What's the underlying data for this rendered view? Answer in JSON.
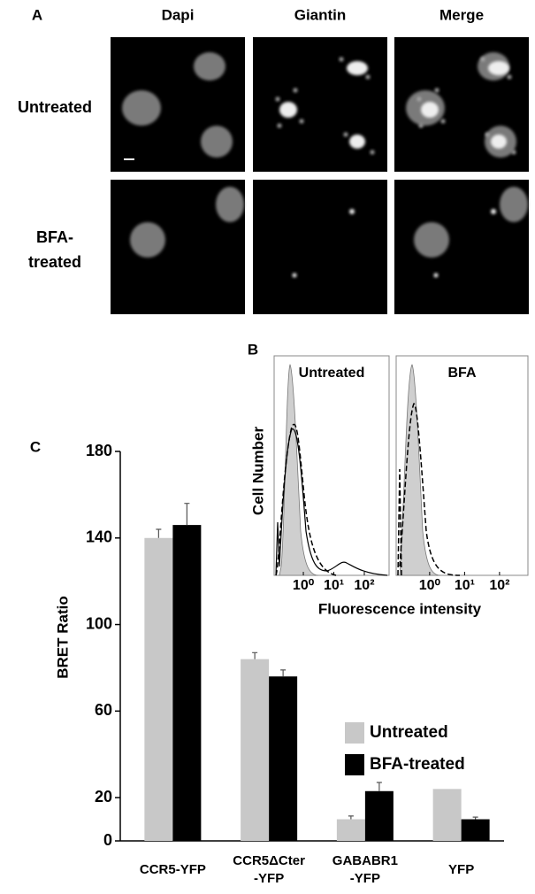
{
  "panel_a": {
    "label": "A",
    "columns": [
      "Dapi",
      "Giantin",
      "Merge"
    ],
    "rows": [
      "Untreated",
      "BFA-\ntreated"
    ]
  },
  "panel_b": {
    "label": "B",
    "y_label": "Cell Number",
    "x_label": "Fluorescence intensity",
    "panels": [
      "Untreated",
      "BFA"
    ],
    "xscale": "log",
    "xlim": [
      0.11,
      650
    ],
    "xticks": [
      {
        "value": 1,
        "label": "10⁰"
      },
      {
        "value": 10,
        "label": "10¹"
      },
      {
        "value": 100,
        "label": "10²"
      }
    ]
  },
  "chart_data": {
    "type": "bar",
    "panel_label": "C",
    "y_label": "BRET Ratio",
    "categories": [
      "CCR5-YFP",
      "CCR5ΔCter\n-YFP",
      "GABABR1\n-YFP",
      "YFP"
    ],
    "series": [
      {
        "name": "Untreated",
        "color": "#c8c8c8",
        "values": [
          140,
          84,
          10,
          24
        ],
        "errors": [
          4,
          3,
          1.5,
          null
        ]
      },
      {
        "name": "BFA-treated",
        "color": "#000000",
        "values": [
          146,
          76,
          23,
          10
        ],
        "errors": [
          10,
          3,
          4,
          1
        ]
      }
    ],
    "ylim": [
      0,
      180
    ],
    "yticks": [
      0,
      20,
      60,
      100,
      140,
      180
    ],
    "legend": "right"
  }
}
